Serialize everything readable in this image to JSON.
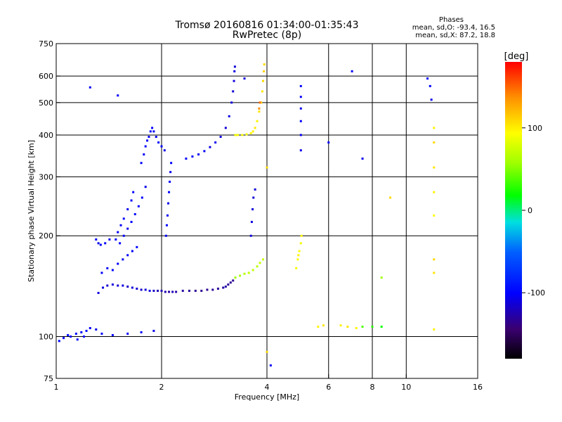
{
  "title": {
    "line1": "Tromsø 20160816 01:34:00-01:35:43",
    "line2": "RwPretec (8p)"
  },
  "stats": {
    "heading": "Phases",
    "line_o": "mean, sd,O: -93.4, 16.5",
    "line_x": "mean, sd,X:  87.2, 18.8"
  },
  "colorbar": {
    "unit": "[deg]",
    "ticks": [
      {
        "value": 100,
        "label": "100"
      },
      {
        "value": 0,
        "label": "0"
      },
      {
        "value": -100,
        "label": "-100"
      }
    ],
    "range": [
      -180,
      180
    ]
  },
  "chart_data": {
    "type": "scatter",
    "xlabel": "Frequency [MHz]",
    "ylabel": "Stationary phase Virtual Height [km]",
    "x_scale": "log",
    "y_scale": "log",
    "xlim": [
      1,
      16
    ],
    "ylim": [
      75,
      750
    ],
    "grid": true,
    "x_ticks": [
      {
        "value": 1,
        "label": "1"
      },
      {
        "value": 2,
        "label": "2"
      },
      {
        "value": 4,
        "label": "4"
      },
      {
        "value": 6,
        "label": "6"
      },
      {
        "value": 8,
        "label": "8"
      },
      {
        "value": 10,
        "label": "10"
      },
      {
        "value": 16,
        "label": "16"
      }
    ],
    "x_grid": [
      2,
      4,
      6,
      8,
      10
    ],
    "y_ticks": [
      {
        "value": 75,
        "label": "75"
      },
      {
        "value": 100,
        "label": "100"
      },
      {
        "value": 200,
        "label": "200"
      },
      {
        "value": 300,
        "label": "300"
      },
      {
        "value": 400,
        "label": "400"
      },
      {
        "value": 500,
        "label": "500"
      },
      {
        "value": 600,
        "label": "600"
      },
      {
        "value": 750,
        "label": "750"
      }
    ],
    "y_grid": [
      100,
      200,
      300,
      400,
      500,
      600
    ],
    "points": [
      [
        1.02,
        97,
        -110
      ],
      [
        1.05,
        99,
        -110
      ],
      [
        1.08,
        101,
        -105
      ],
      [
        1.1,
        100,
        -112
      ],
      [
        1.14,
        102,
        -108
      ],
      [
        1.18,
        103,
        -110
      ],
      [
        1.22,
        104,
        -105
      ],
      [
        1.25,
        106,
        -112
      ],
      [
        1.15,
        98,
        -108
      ],
      [
        1.2,
        100,
        -110
      ],
      [
        1.3,
        105,
        -115
      ],
      [
        1.35,
        102,
        -110
      ],
      [
        1.45,
        101,
        -108
      ],
      [
        1.6,
        102,
        -112
      ],
      [
        1.75,
        103,
        -110
      ],
      [
        1.9,
        104,
        -115
      ],
      [
        1.32,
        135,
        -120
      ],
      [
        1.36,
        140,
        -118
      ],
      [
        1.4,
        142,
        -125
      ],
      [
        1.45,
        143,
        -120
      ],
      [
        1.5,
        142,
        -122
      ],
      [
        1.55,
        142,
        -118
      ],
      [
        1.6,
        141,
        -125
      ],
      [
        1.65,
        140,
        -120
      ],
      [
        1.7,
        139,
        -122
      ],
      [
        1.75,
        138,
        -125
      ],
      [
        1.8,
        138,
        -120
      ],
      [
        1.85,
        137,
        -118
      ],
      [
        1.9,
        137,
        -125
      ],
      [
        1.95,
        137,
        -130
      ],
      [
        2.0,
        137,
        -130
      ],
      [
        2.05,
        136,
        -132
      ],
      [
        2.1,
        136,
        -135
      ],
      [
        2.15,
        136,
        -130
      ],
      [
        2.2,
        136,
        -135
      ],
      [
        2.3,
        137,
        -135
      ],
      [
        2.4,
        137,
        -138
      ],
      [
        2.5,
        137,
        -140
      ],
      [
        2.6,
        137,
        -140
      ],
      [
        2.7,
        138,
        -140
      ],
      [
        2.8,
        138,
        -138
      ],
      [
        2.9,
        139,
        -138
      ],
      [
        3.0,
        140,
        -135
      ],
      [
        3.05,
        141,
        -135
      ],
      [
        3.1,
        143,
        -140
      ],
      [
        3.15,
        145,
        -140
      ],
      [
        3.2,
        147,
        -140
      ],
      [
        1.35,
        155,
        -110
      ],
      [
        1.4,
        160,
        -112
      ],
      [
        1.45,
        158,
        -108
      ],
      [
        1.5,
        165,
        -110
      ],
      [
        1.55,
        170,
        -115
      ],
      [
        1.6,
        175,
        -112
      ],
      [
        1.65,
        180,
        -110
      ],
      [
        1.7,
        185,
        -108
      ],
      [
        1.52,
        190,
        -110
      ],
      [
        1.56,
        200,
        -112
      ],
      [
        1.6,
        210,
        -115
      ],
      [
        1.64,
        220,
        -110
      ],
      [
        1.68,
        232,
        -108
      ],
      [
        1.72,
        245,
        -112
      ],
      [
        1.76,
        260,
        -110
      ],
      [
        1.8,
        280,
        -115
      ],
      [
        1.48,
        195,
        -108
      ],
      [
        1.5,
        205,
        -110
      ],
      [
        1.53,
        215,
        -112
      ],
      [
        1.56,
        225,
        -110
      ],
      [
        1.6,
        240,
        -115
      ],
      [
        1.64,
        255,
        -112
      ],
      [
        1.66,
        270,
        -110
      ],
      [
        1.3,
        195,
        -112
      ],
      [
        1.32,
        190,
        -115
      ],
      [
        1.34,
        188,
        -110
      ],
      [
        1.38,
        190,
        -112
      ],
      [
        1.42,
        195,
        -115
      ],
      [
        1.75,
        330,
        -110
      ],
      [
        1.78,
        350,
        -112
      ],
      [
        1.8,
        370,
        -108
      ],
      [
        1.82,
        385,
        -110
      ],
      [
        1.84,
        395,
        -112
      ],
      [
        1.86,
        410,
        -108
      ],
      [
        1.88,
        420,
        -110
      ],
      [
        1.9,
        410,
        -112
      ],
      [
        1.93,
        395,
        -115
      ],
      [
        1.96,
        380,
        -110
      ],
      [
        2.0,
        370,
        -112
      ],
      [
        2.04,
        360,
        -115
      ],
      [
        2.06,
        200,
        -112
      ],
      [
        2.07,
        215,
        -110
      ],
      [
        2.08,
        230,
        -112
      ],
      [
        2.09,
        250,
        -115
      ],
      [
        2.1,
        270,
        -110
      ],
      [
        2.11,
        290,
        -112
      ],
      [
        2.12,
        310,
        -115
      ],
      [
        2.13,
        330,
        -110
      ],
      [
        2.35,
        340,
        -112
      ],
      [
        2.45,
        345,
        -110
      ],
      [
        2.55,
        350,
        -115
      ],
      [
        2.65,
        358,
        -112
      ],
      [
        2.75,
        368,
        -118
      ],
      [
        2.85,
        380,
        -115
      ],
      [
        2.95,
        395,
        -118
      ],
      [
        3.05,
        420,
        -120
      ],
      [
        3.12,
        455,
        -118
      ],
      [
        3.17,
        500,
        -120
      ],
      [
        3.2,
        540,
        -122
      ],
      [
        3.22,
        580,
        -120
      ],
      [
        3.23,
        620,
        -118
      ],
      [
        3.24,
        640,
        -120
      ],
      [
        3.25,
        400,
        90
      ],
      [
        3.3,
        400,
        95
      ],
      [
        3.4,
        400,
        92
      ],
      [
        3.5,
        402,
        90
      ],
      [
        3.6,
        405,
        95
      ],
      [
        3.65,
        410,
        100
      ],
      [
        3.7,
        420,
        105
      ],
      [
        3.75,
        440,
        100
      ],
      [
        3.8,
        470,
        105
      ],
      [
        3.85,
        500,
        110
      ],
      [
        3.88,
        540,
        105
      ],
      [
        3.9,
        580,
        110
      ],
      [
        3.92,
        620,
        115
      ],
      [
        3.93,
        650,
        110
      ],
      [
        3.8,
        480,
        140
      ],
      [
        3.82,
        500,
        150
      ],
      [
        3.25,
        150,
        40
      ],
      [
        3.35,
        152,
        45
      ],
      [
        3.45,
        154,
        50
      ],
      [
        3.55,
        155,
        55
      ],
      [
        3.65,
        158,
        60
      ],
      [
        3.75,
        162,
        55
      ],
      [
        3.82,
        166,
        60
      ],
      [
        3.9,
        170,
        62
      ],
      [
        3.6,
        200,
        -120
      ],
      [
        3.62,
        220,
        -118
      ],
      [
        3.64,
        240,
        -120
      ],
      [
        3.66,
        260,
        -122
      ],
      [
        3.7,
        275,
        -120
      ],
      [
        4.85,
        160,
        90
      ],
      [
        4.9,
        170,
        95
      ],
      [
        4.95,
        180,
        92
      ],
      [
        5.0,
        190,
        90
      ],
      [
        5.02,
        200,
        95
      ],
      [
        4.92,
        175,
        100
      ],
      [
        5.0,
        560,
        -110
      ],
      [
        5.0,
        520,
        -112
      ],
      [
        5.0,
        480,
        -115
      ],
      [
        5.0,
        440,
        -110
      ],
      [
        5.0,
        400,
        -112
      ],
      [
        5.0,
        360,
        -115
      ],
      [
        5.6,
        107,
        100
      ],
      [
        5.8,
        108,
        105
      ],
      [
        6.5,
        108,
        100
      ],
      [
        6.8,
        107,
        105
      ],
      [
        7.2,
        106,
        100
      ],
      [
        7.5,
        107,
        20
      ],
      [
        8.0,
        107,
        10
      ],
      [
        8.5,
        107,
        0
      ],
      [
        1.25,
        555,
        -112
      ],
      [
        1.5,
        525,
        -110
      ],
      [
        11.5,
        590,
        -110
      ],
      [
        11.7,
        560,
        -112
      ],
      [
        11.8,
        510,
        -115
      ],
      [
        12.0,
        420,
        100
      ],
      [
        12.0,
        380,
        110
      ],
      [
        12.0,
        320,
        105
      ],
      [
        12.0,
        270,
        100
      ],
      [
        12.0,
        230,
        95
      ],
      [
        12.0,
        170,
        110
      ],
      [
        12.0,
        155,
        105
      ],
      [
        12.0,
        105,
        100
      ],
      [
        7.0,
        620,
        -112
      ],
      [
        7.5,
        340,
        -115
      ],
      [
        8.5,
        150,
        40
      ],
      [
        9.0,
        260,
        110
      ],
      [
        6.0,
        380,
        -110
      ],
      [
        4.0,
        320,
        110
      ],
      [
        3.45,
        590,
        -120
      ],
      [
        4.0,
        90,
        110
      ],
      [
        4.1,
        82,
        -112
      ]
    ]
  }
}
